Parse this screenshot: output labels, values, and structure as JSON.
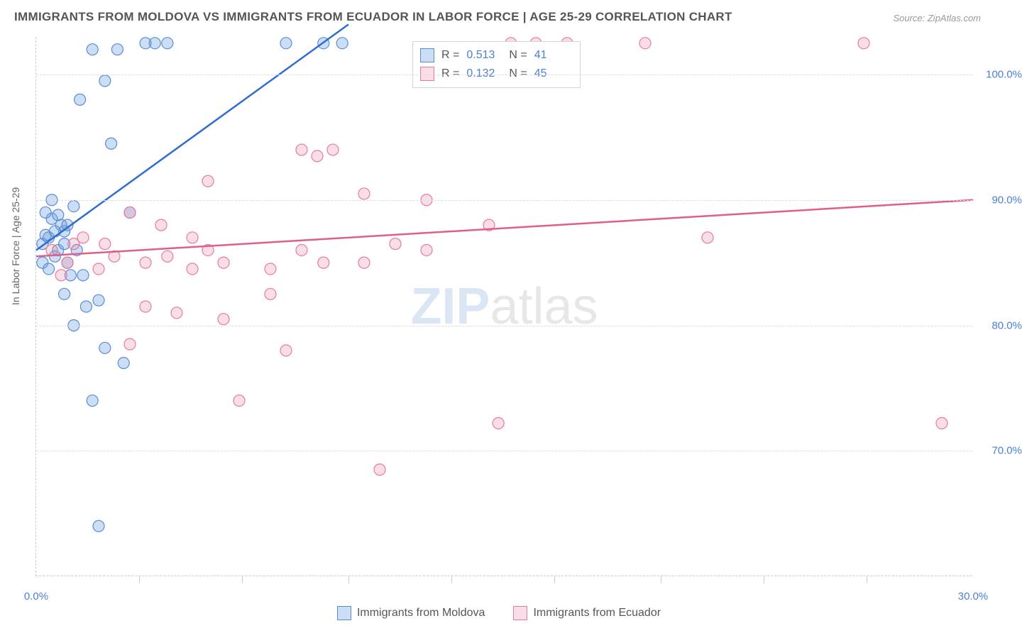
{
  "title": "IMMIGRANTS FROM MOLDOVA VS IMMIGRANTS FROM ECUADOR IN LABOR FORCE | AGE 25-29 CORRELATION CHART",
  "source": "Source: ZipAtlas.com",
  "yaxis_title": "In Labor Force | Age 25-29",
  "watermark": {
    "part1": "ZIP",
    "part2": "atlas"
  },
  "colors": {
    "series1_fill": "rgba(108,160,220,0.35)",
    "series1_stroke": "#5a8cd6",
    "series1_line": "#2e6cd0",
    "series2_fill": "rgba(235,145,170,0.30)",
    "series2_stroke": "#e57ba0",
    "series2_line": "#e05f8a",
    "axis_text": "#4a7fd6",
    "title_text": "#555555",
    "grid": "#dddddd",
    "background": "#ffffff"
  },
  "chart": {
    "type": "scatter",
    "xlim": [
      0,
      30
    ],
    "ylim": [
      60,
      103
    ],
    "xticks": [
      0,
      3.3,
      6.6,
      10,
      13.3,
      16.6,
      20,
      23.3,
      26.6,
      30
    ],
    "xtick_labels": {
      "0": "0.0%",
      "30": "30.0%"
    },
    "yticks": [
      70,
      80,
      90,
      100
    ],
    "ytick_labels": {
      "70": "70.0%",
      "80": "80.0%",
      "90": "90.0%",
      "100": "100.0%"
    },
    "marker_radius": 8,
    "line_width": 2.5,
    "title_fontsize": 17,
    "tick_fontsize": 15
  },
  "series": [
    {
      "name": "Immigrants from Moldova",
      "color_fill": "rgba(108,160,220,0.35)",
      "color_stroke": "#5a8cd6",
      "trend_color": "#2e6cd0",
      "R": "0.513",
      "N": "41",
      "trend": {
        "x1": 0,
        "y1": 86,
        "x2": 10,
        "y2": 104
      },
      "points": [
        [
          0.2,
          86.5
        ],
        [
          0.3,
          87.2
        ],
        [
          0.4,
          87.0
        ],
        [
          0.5,
          88.5
        ],
        [
          0.6,
          85.5
        ],
        [
          0.7,
          86.0
        ],
        [
          0.8,
          88.0
        ],
        [
          0.3,
          89.0
        ],
        [
          0.5,
          90.0
        ],
        [
          0.9,
          87.5
        ],
        [
          1.0,
          85.0
        ],
        [
          1.1,
          84.0
        ],
        [
          1.2,
          89.5
        ],
        [
          0.2,
          85.0
        ],
        [
          0.4,
          84.5
        ],
        [
          0.6,
          87.5
        ],
        [
          0.7,
          88.8
        ],
        [
          0.9,
          86.5
        ],
        [
          1.0,
          88.0
        ],
        [
          1.3,
          86.0
        ],
        [
          1.5,
          84.0
        ],
        [
          1.8,
          102.0
        ],
        [
          2.0,
          82.0
        ],
        [
          2.2,
          99.5
        ],
        [
          2.4,
          94.5
        ],
        [
          2.6,
          102.0
        ],
        [
          2.0,
          64.0
        ],
        [
          1.8,
          74.0
        ],
        [
          2.2,
          78.2
        ],
        [
          3.0,
          89.0
        ],
        [
          3.5,
          102.5
        ],
        [
          3.8,
          102.5
        ],
        [
          4.2,
          102.5
        ],
        [
          1.4,
          98.0
        ],
        [
          1.6,
          81.5
        ],
        [
          1.2,
          80.0
        ],
        [
          2.8,
          77.0
        ],
        [
          0.9,
          82.5
        ],
        [
          8.0,
          102.5
        ],
        [
          9.2,
          102.5
        ],
        [
          9.8,
          102.5
        ]
      ]
    },
    {
      "name": "Immigrants from Ecuador",
      "color_fill": "rgba(235,145,170,0.30)",
      "color_stroke": "#e57ba0",
      "trend_color": "#e05f8a",
      "R": "0.132",
      "N": "45",
      "trend": {
        "x1": 0,
        "y1": 85.5,
        "x2": 30,
        "y2": 90
      },
      "points": [
        [
          0.5,
          86.0
        ],
        [
          1.0,
          85.0
        ],
        [
          1.5,
          87.0
        ],
        [
          2.0,
          84.5
        ],
        [
          2.5,
          85.5
        ],
        [
          3.0,
          89.0
        ],
        [
          3.0,
          78.5
        ],
        [
          3.5,
          85.0
        ],
        [
          3.5,
          81.5
        ],
        [
          4.0,
          88.0
        ],
        [
          4.5,
          81.0
        ],
        [
          5.0,
          87.0
        ],
        [
          5.0,
          84.5
        ],
        [
          5.5,
          91.5
        ],
        [
          5.5,
          86.0
        ],
        [
          6.0,
          85.0
        ],
        [
          6.0,
          80.5
        ],
        [
          6.5,
          74.0
        ],
        [
          7.5,
          84.5
        ],
        [
          7.5,
          82.5
        ],
        [
          8.0,
          78.0
        ],
        [
          8.5,
          94.0
        ],
        [
          8.5,
          86.0
        ],
        [
          9.0,
          93.5
        ],
        [
          9.2,
          85.0
        ],
        [
          9.5,
          94.0
        ],
        [
          10.5,
          85.0
        ],
        [
          10.5,
          90.5
        ],
        [
          11.0,
          68.5
        ],
        [
          11.5,
          86.5
        ],
        [
          12.5,
          90.0
        ],
        [
          12.5,
          86.0
        ],
        [
          14.5,
          88.0
        ],
        [
          14.8,
          72.2
        ],
        [
          15.2,
          102.5
        ],
        [
          16.0,
          102.5
        ],
        [
          17.0,
          102.5
        ],
        [
          19.5,
          102.5
        ],
        [
          21.5,
          87.0
        ],
        [
          26.5,
          102.5
        ],
        [
          29.0,
          72.2
        ],
        [
          1.2,
          86.5
        ],
        [
          2.2,
          86.5
        ],
        [
          4.2,
          85.5
        ],
        [
          0.8,
          84.0
        ]
      ]
    }
  ],
  "legend": {
    "series1_label": "Immigrants from Moldova",
    "series2_label": "Immigrants from Ecuador"
  }
}
